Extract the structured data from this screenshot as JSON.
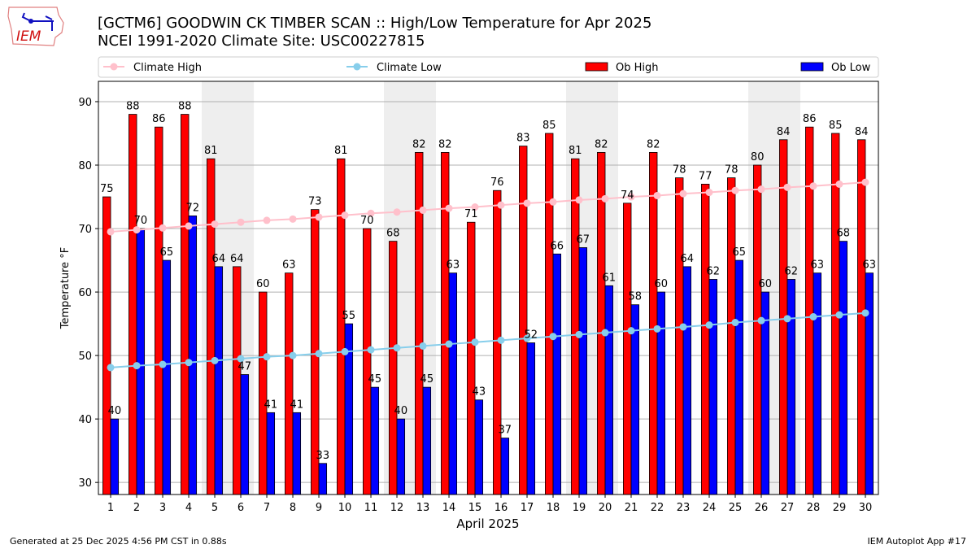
{
  "header": {
    "logo_text": "IEM",
    "title_line1": "[GCTM6] GOODWIN CK TIMBER SCAN :: High/Low Temperature for Apr 2025",
    "title_line2": "NCEI 1991-2020 Climate Site: USC00227815"
  },
  "footer": {
    "left": "Generated at 25 Dec 2025 4:56 PM CST in 0.88s",
    "right": "IEM Autoplot App #17"
  },
  "chart_data": {
    "type": "bar",
    "xlabel": "April 2025",
    "ylabel": "Temperature °F",
    "xlim": [
      0.53,
      30.5
    ],
    "ylim": [
      28.1,
      93.2
    ],
    "yticks": [
      30,
      40,
      50,
      60,
      70,
      80,
      90
    ],
    "grid": true,
    "legend_placement": "top",
    "weekend_days": [
      5,
      6,
      12,
      13,
      19,
      20,
      26,
      27
    ],
    "colors": {
      "ob_high": "#ff0000",
      "ob_low": "#0000ff",
      "climate_high": "#ffc0cb",
      "climate_low": "#87ceeb",
      "weekend": "#eeeeee"
    },
    "categories": [
      "1",
      "2",
      "3",
      "4",
      "5",
      "6",
      "7",
      "8",
      "9",
      "10",
      "11",
      "12",
      "13",
      "14",
      "15",
      "16",
      "17",
      "18",
      "19",
      "20",
      "21",
      "22",
      "23",
      "24",
      "25",
      "26",
      "27",
      "28",
      "29",
      "30"
    ],
    "series": [
      {
        "name": "Climate High",
        "kind": "line",
        "values": [
          69.5,
          69.8,
          70.1,
          70.4,
          70.7,
          71.0,
          71.3,
          71.5,
          71.8,
          72.1,
          72.4,
          72.6,
          72.9,
          73.2,
          73.4,
          73.7,
          74.0,
          74.2,
          74.5,
          74.7,
          75.0,
          75.2,
          75.5,
          75.7,
          76.0,
          76.2,
          76.5,
          76.7,
          77.0,
          77.3
        ]
      },
      {
        "name": "Climate Low",
        "kind": "line",
        "values": [
          48.1,
          48.4,
          48.6,
          48.9,
          49.2,
          49.5,
          49.8,
          50.0,
          50.3,
          50.6,
          50.9,
          51.2,
          51.5,
          51.8,
          52.1,
          52.4,
          52.7,
          53.0,
          53.3,
          53.6,
          53.9,
          54.2,
          54.5,
          54.8,
          55.2,
          55.5,
          55.8,
          56.1,
          56.4,
          56.7
        ]
      },
      {
        "name": "Ob High",
        "kind": "bar",
        "values": [
          75,
          88,
          86,
          88,
          81,
          64,
          60,
          63,
          73,
          81,
          70,
          68,
          82,
          82,
          71,
          76,
          83,
          85,
          81,
          82,
          74,
          82,
          78,
          77,
          78,
          80,
          84,
          86,
          85,
          84
        ]
      },
      {
        "name": "Ob Low",
        "kind": "bar",
        "values": [
          40,
          70,
          65,
          72,
          64,
          47,
          41,
          41,
          33,
          55,
          45,
          40,
          45,
          63,
          43,
          37,
          52,
          66,
          67,
          61,
          58,
          60,
          64,
          62,
          65,
          60,
          62,
          63,
          68,
          63
        ]
      }
    ]
  }
}
